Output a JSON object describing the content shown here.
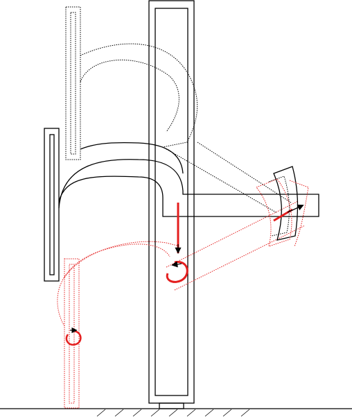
{
  "diagram": {
    "colors": {
      "ink": "#000000",
      "accent": "#e41e1e",
      "background": "#ffffff"
    },
    "parts": [
      "fixed-column",
      "current-linkage",
      "previous-linkage-position",
      "next-linkage-position",
      "swivel-head",
      "ground-hatch"
    ],
    "arrows": [
      "downward-motion-arrow",
      "head-motion-arrow",
      "rotation-arrow-lower-left",
      "rotation-arrow-center"
    ]
  }
}
